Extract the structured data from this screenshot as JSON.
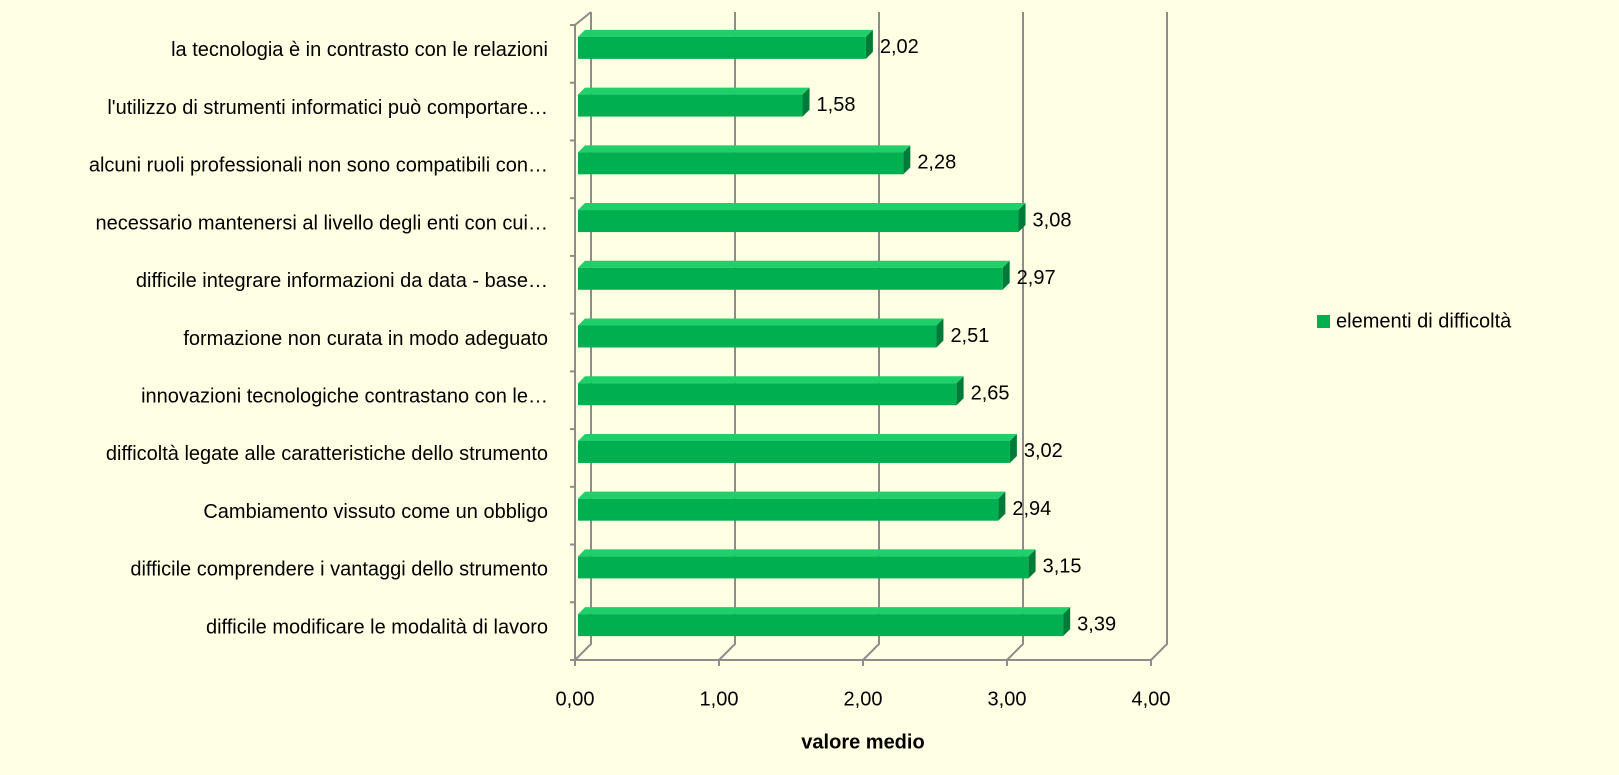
{
  "chart_data": {
    "type": "bar",
    "orientation": "horizontal",
    "categories": [
      "la tecnologia è in contrasto con le relazioni",
      "l'utilizzo di strumenti informatici può comportare…",
      "alcuni ruoli professionali non sono compatibili con…",
      "necessario mantenersi al livello degli enti con cui…",
      "difficile integrare informazioni da data - base…",
      "formazione non curata in modo adeguato",
      "innovazioni tecnologiche contrastano con le…",
      "difficoltà legate alle caratteristiche dello strumento",
      "Cambiamento vissuto come un obbligo",
      "difficile comprendere i vantaggi dello strumento",
      "difficile modificare le modalità di lavoro"
    ],
    "series": [
      {
        "name": "elementi di difficoltà",
        "color": "#00b050",
        "values": [
          2.02,
          1.58,
          2.28,
          3.08,
          2.97,
          2.51,
          2.65,
          3.02,
          2.94,
          3.15,
          3.39
        ],
        "value_labels": [
          "2,02",
          "1,58",
          "2,28",
          "3,08",
          "2,97",
          "2,51",
          "2,65",
          "3,02",
          "2,94",
          "3,15",
          "3,39"
        ]
      }
    ],
    "x_label": "valore medio",
    "xlim": [
      0,
      4
    ],
    "xticks": [
      {
        "value": 0,
        "label": "0,00"
      },
      {
        "value": 1,
        "label": "1,00"
      },
      {
        "value": 2,
        "label": "2,00"
      },
      {
        "value": 3,
        "label": "3,00"
      },
      {
        "value": 4,
        "label": "4,00"
      }
    ],
    "grid": true,
    "legend": "right"
  }
}
